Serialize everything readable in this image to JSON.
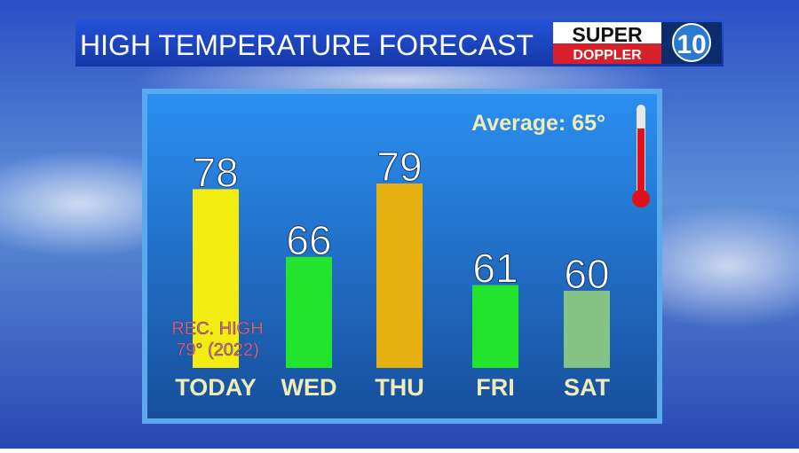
{
  "chart_data": {
    "type": "bar",
    "title": "HIGH TEMPERATURE FORECAST",
    "logo": {
      "top": "SUPER",
      "bottom": "DOPPLER",
      "number": "10"
    },
    "annotations": {
      "average": "Average: 65°",
      "record": [
        "REC. HIGH",
        "79° (2022)"
      ]
    },
    "categories": [
      "TODAY",
      "WED",
      "THU",
      "FRI",
      "SAT"
    ],
    "values": [
      78,
      66,
      79,
      61,
      60
    ],
    "colors": [
      "#f2ec12",
      "#22e42c",
      "#e6b010",
      "#22e42c",
      "#84c383"
    ]
  }
}
